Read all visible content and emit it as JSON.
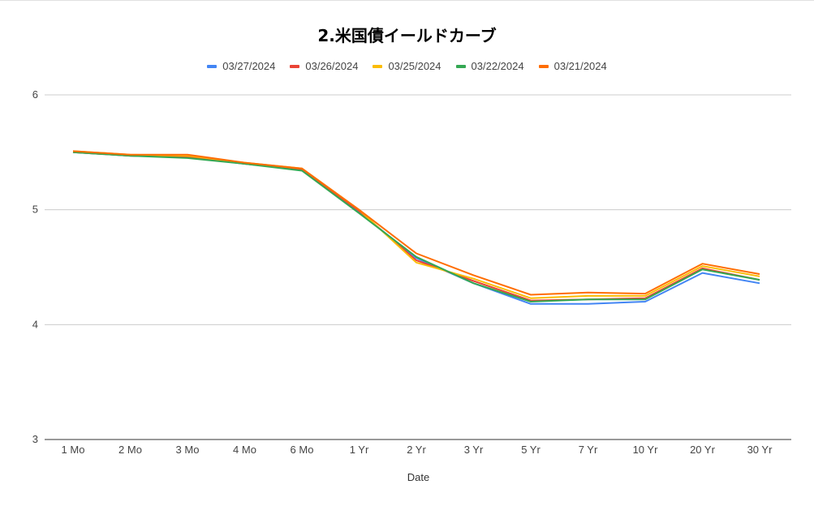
{
  "chart_data": {
    "type": "line",
    "title": "2.米国債イールドカーブ",
    "xlabel": "Date",
    "ylabel": "",
    "ylim": [
      3,
      6
    ],
    "yticks": [
      3,
      4,
      5,
      6
    ],
    "grid": true,
    "legend_position": "top",
    "categories": [
      "1 Mo",
      "2 Mo",
      "3 Mo",
      "4 Mo",
      "6 Mo",
      "1 Yr",
      "2 Yr",
      "3 Yr",
      "5 Yr",
      "7 Yr",
      "10 Yr",
      "20 Yr",
      "30 Yr"
    ],
    "series": [
      {
        "name": "03/27/2024",
        "color": "#4285f4",
        "values": [
          5.5,
          5.47,
          5.46,
          5.4,
          5.35,
          4.98,
          4.58,
          4.36,
          4.18,
          4.18,
          4.2,
          4.45,
          4.36
        ]
      },
      {
        "name": "03/26/2024",
        "color": "#ea4335",
        "values": [
          5.5,
          5.47,
          5.46,
          5.4,
          5.35,
          4.99,
          4.56,
          4.38,
          4.21,
          4.22,
          4.23,
          4.49,
          4.39
        ]
      },
      {
        "name": "03/25/2024",
        "color": "#fbbc04",
        "values": [
          5.51,
          5.48,
          5.47,
          5.41,
          5.36,
          5.0,
          4.54,
          4.4,
          4.23,
          4.25,
          4.25,
          4.51,
          4.42
        ]
      },
      {
        "name": "03/22/2024",
        "color": "#34a853",
        "values": [
          5.5,
          5.47,
          5.45,
          5.4,
          5.34,
          4.97,
          4.59,
          4.36,
          4.2,
          4.22,
          4.22,
          4.48,
          4.39
        ]
      },
      {
        "name": "03/21/2024",
        "color": "#ff6d01",
        "values": [
          5.51,
          5.48,
          5.48,
          5.41,
          5.36,
          5.0,
          4.62,
          4.43,
          4.26,
          4.28,
          4.27,
          4.53,
          4.44
        ]
      }
    ]
  }
}
